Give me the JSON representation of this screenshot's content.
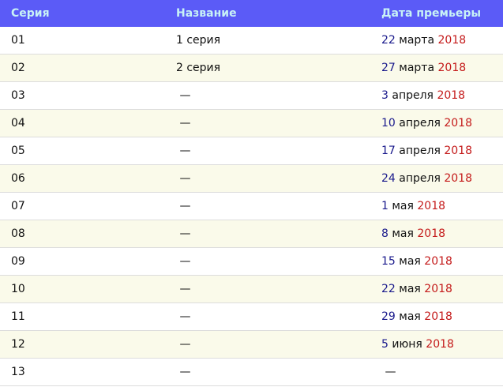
{
  "headers": [
    "Серия",
    "Название",
    "Дата премьеры"
  ],
  "colors": {
    "header_bg": "#5b5bf7",
    "header_text": "#c8f2f6",
    "day": "#1a1a8c",
    "year": "#c41a1a",
    "alt_row": "#fafaea"
  },
  "rows": [
    {
      "ep": "01",
      "title": "1 серия",
      "day": "22",
      "month": "марта",
      "year": "2018"
    },
    {
      "ep": "02",
      "title": "2 серия",
      "day": "27",
      "month": "марта",
      "year": "2018"
    },
    {
      "ep": "03",
      "title": " —",
      "day": "3",
      "month": "апреля",
      "year": "2018"
    },
    {
      "ep": "04",
      "title": " —",
      "day": "10",
      "month": "апреля",
      "year": "2018"
    },
    {
      "ep": "05",
      "title": " —",
      "day": "17",
      "month": "апреля",
      "year": "2018"
    },
    {
      "ep": "06",
      "title": " —",
      "day": "24",
      "month": "апреля",
      "year": "2018"
    },
    {
      "ep": "07",
      "title": " —",
      "day": "1",
      "month": "мая",
      "year": "2018"
    },
    {
      "ep": "08",
      "title": " —",
      "day": "8",
      "month": "мая",
      "year": "2018"
    },
    {
      "ep": "09",
      "title": " —",
      "day": "15",
      "month": "мая",
      "year": "2018"
    },
    {
      "ep": "10",
      "title": " —",
      "day": "22",
      "month": "мая",
      "year": "2018"
    },
    {
      "ep": "11",
      "title": " —",
      "day": "29",
      "month": "мая",
      "year": "2018"
    },
    {
      "ep": "12",
      "title": " —",
      "day": "5",
      "month": "июня",
      "year": "2018"
    },
    {
      "ep": "13",
      "title": " —",
      "day": "",
      "month": "",
      "year": "",
      "date_text": " —"
    }
  ]
}
